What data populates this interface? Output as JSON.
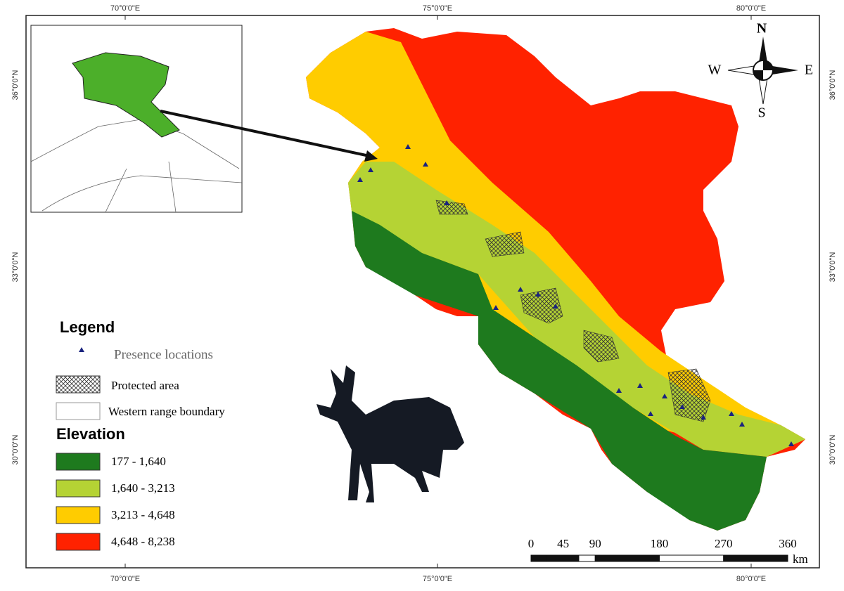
{
  "graticule": {
    "top": [
      "70°0'0\"E",
      "75°0'0\"E",
      "80°0'0\"E"
    ],
    "bottom": [
      "70°0'0\"E",
      "75°0'0\"E",
      "80°0'0\"E"
    ],
    "left": [
      "36°0'0\"N",
      "33°0'0\"N",
      "30°0'0\"N"
    ],
    "right": [
      "36°0'0\"N",
      "33°0'0\"N",
      "30°0'0\"N"
    ]
  },
  "compass": {
    "north": "N",
    "south": "S",
    "east": "E",
    "west": "W"
  },
  "legend": {
    "title": "Legend",
    "items": [
      "Presence locations",
      "Protected area",
      "Western range boundary"
    ],
    "elevation_title": "Elevation",
    "classes": [
      "177 - 1,640",
      "1,640 - 3,213",
      "3,213 - 4,648",
      "4,648 - 8,238"
    ]
  },
  "scale_bar": {
    "labels": [
      0,
      45,
      90,
      180,
      270,
      360
    ],
    "unit": "km"
  }
}
